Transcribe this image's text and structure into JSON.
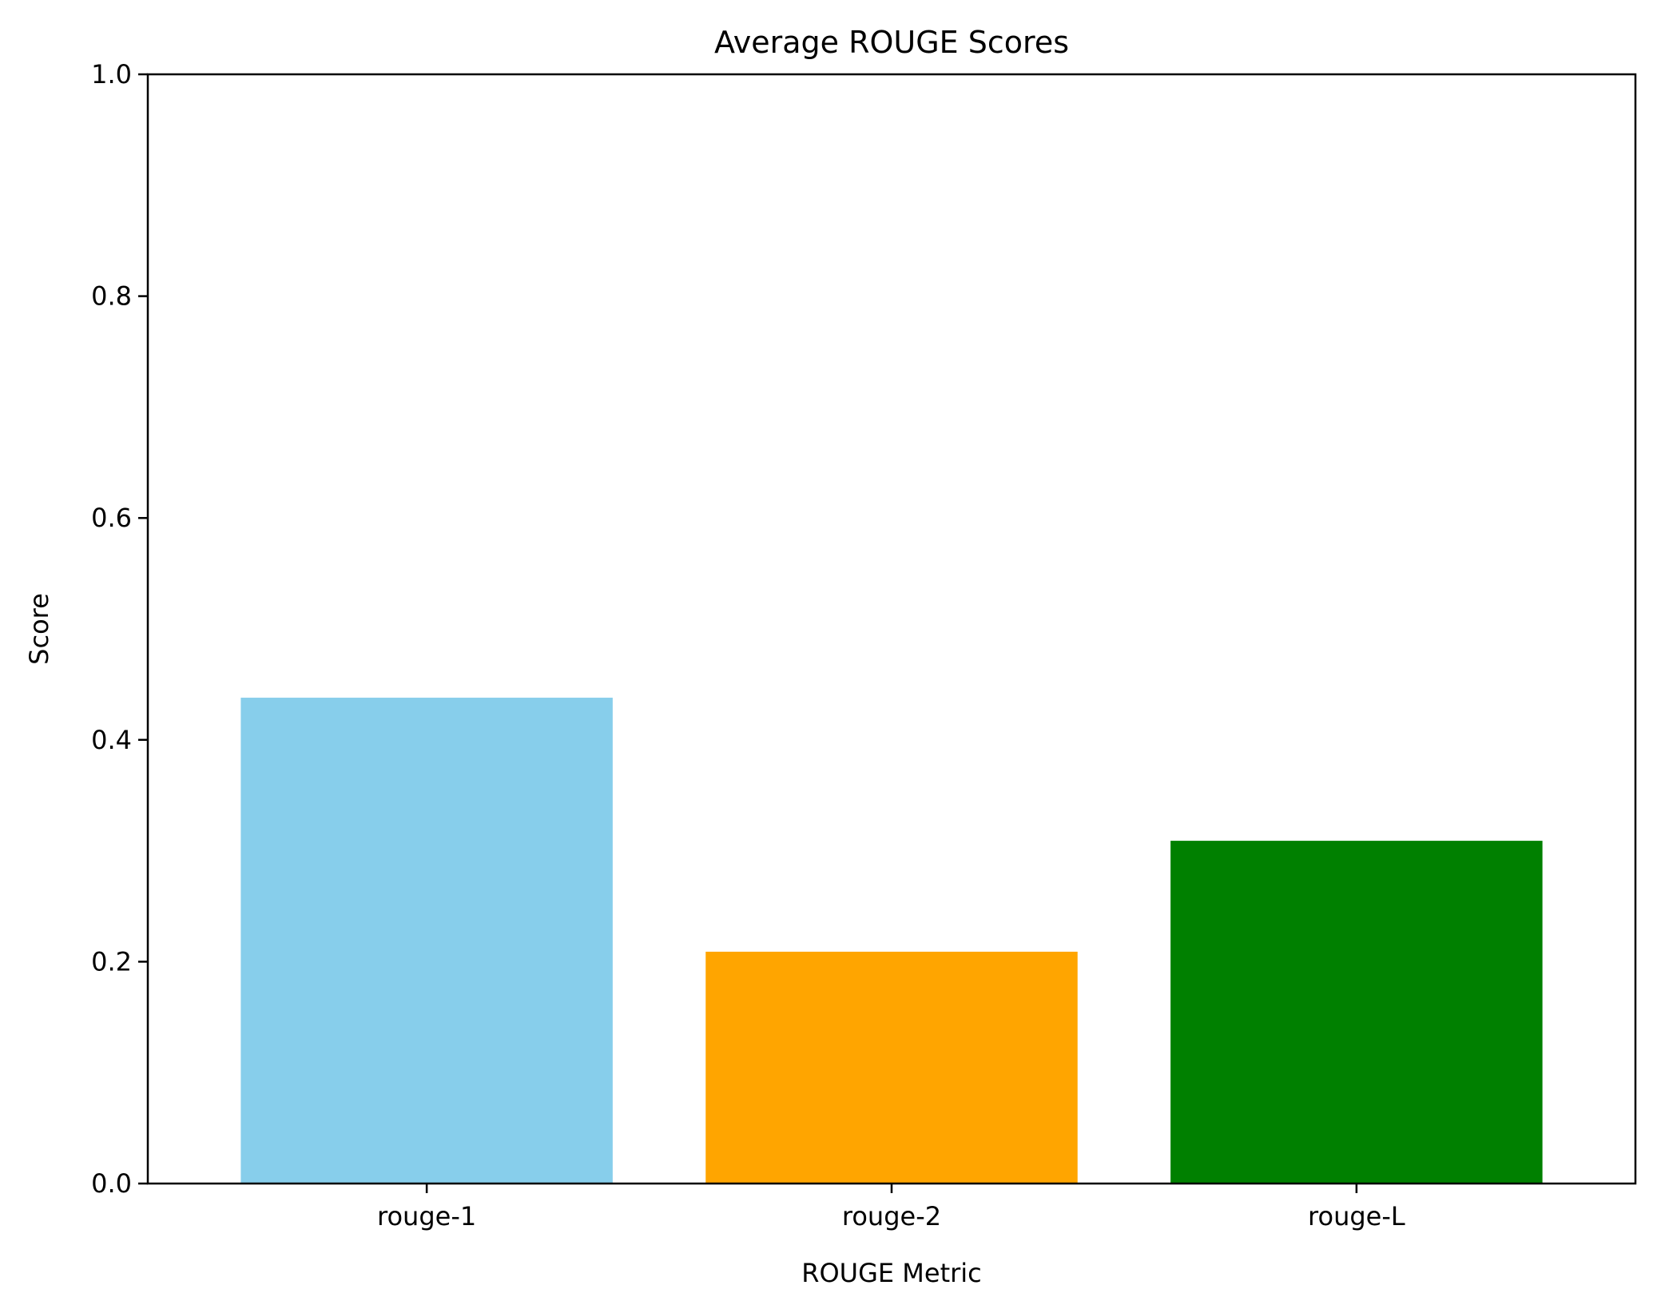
{
  "chart_data": {
    "type": "bar",
    "title": "Average ROUGE Scores",
    "xlabel": "ROUGE Metric",
    "ylabel": "Score",
    "categories": [
      "rouge-1",
      "rouge-2",
      "rouge-L"
    ],
    "values": [
      0.438,
      0.209,
      0.309
    ],
    "colors": [
      "#87ceeb",
      "#ffa500",
      "#008000"
    ],
    "ylim": [
      0,
      1.0
    ],
    "yticks": [
      "0.0",
      "0.2",
      "0.4",
      "0.6",
      "0.8",
      "1.0"
    ],
    "grid": false,
    "legend": "none"
  }
}
